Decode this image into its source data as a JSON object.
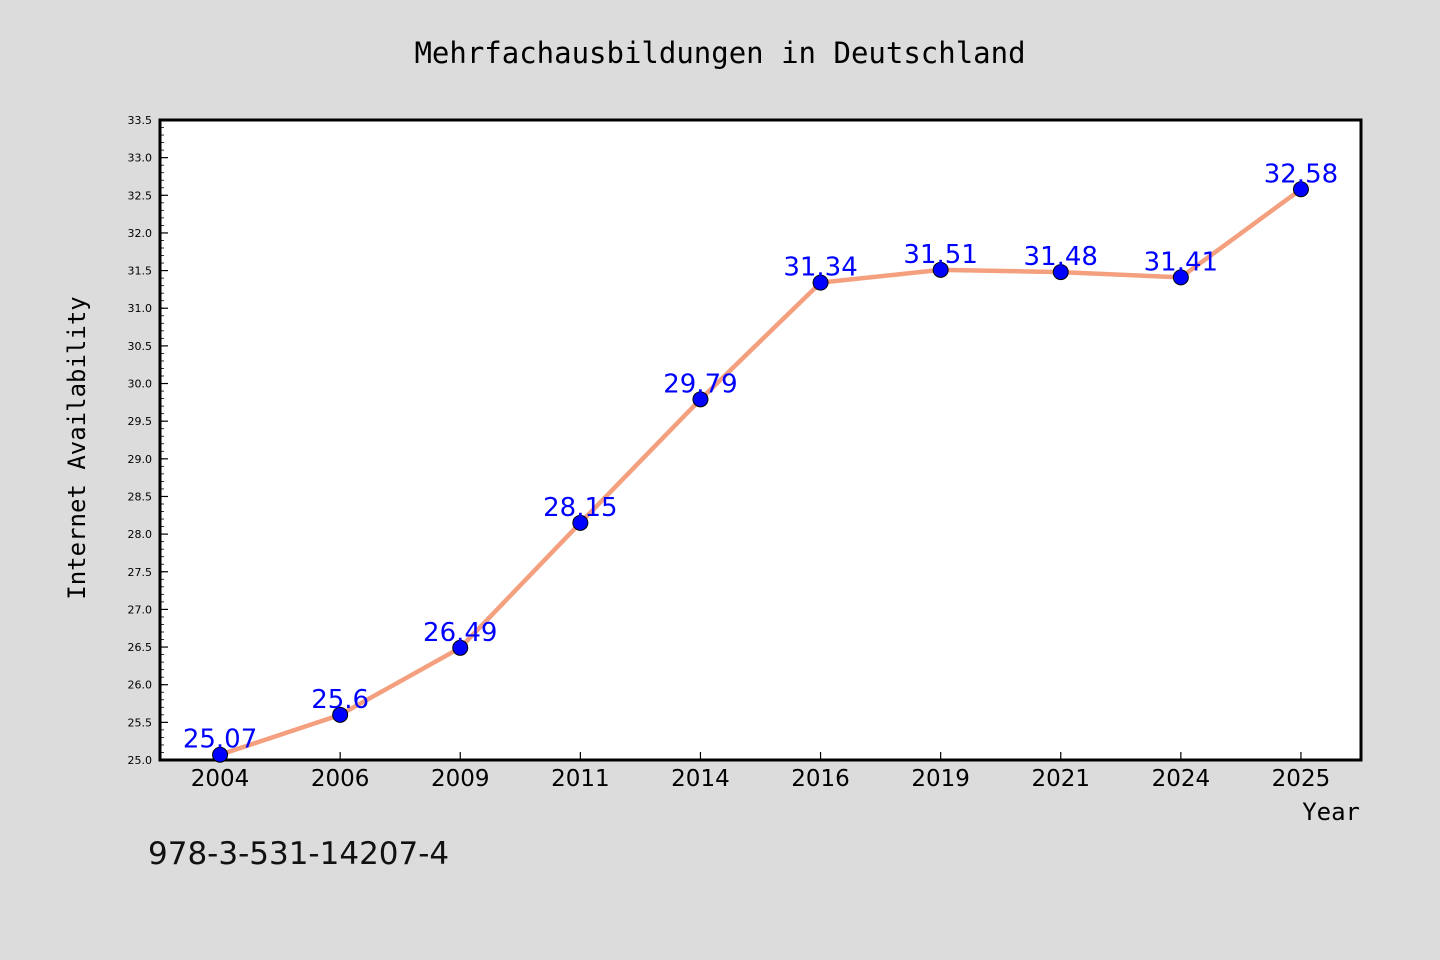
{
  "chart_data": {
    "type": "line",
    "title": "Mehrfachausbildungen in Deutschland",
    "xlabel": "Year",
    "ylabel": "Internet Availability",
    "categories": [
      "2004",
      "2006",
      "2009",
      "2011",
      "2014",
      "2016",
      "2019",
      "2021",
      "2024",
      "2025"
    ],
    "series": [
      {
        "values": [
          25.07,
          25.6,
          26.49,
          28.15,
          29.79,
          31.34,
          31.51,
          31.48,
          31.41,
          32.58
        ],
        "labels": [
          "25.07",
          "25.6",
          "26.49",
          "28.15",
          "29.79",
          "31.34",
          "31.51",
          "31.48",
          "31.41",
          "32.58"
        ]
      }
    ],
    "ylim": [
      25.0,
      33.5
    ],
    "yticks": [
      "25.0",
      "25.5",
      "26.0",
      "26.5",
      "27.0",
      "27.5",
      "28.0",
      "28.5",
      "29.0",
      "29.5",
      "30.0",
      "30.5",
      "31.0",
      "31.5",
      "32.0",
      "32.5",
      "33.0",
      "33.5"
    ],
    "grid": false,
    "colors": {
      "line": "#f4a07e",
      "marker": "#0000ff",
      "labels": "#0000ff",
      "background": "#dcdcdc",
      "plot_background": "#ffffff"
    }
  },
  "footer": {
    "isbn": "978-3-531-14207-4"
  }
}
